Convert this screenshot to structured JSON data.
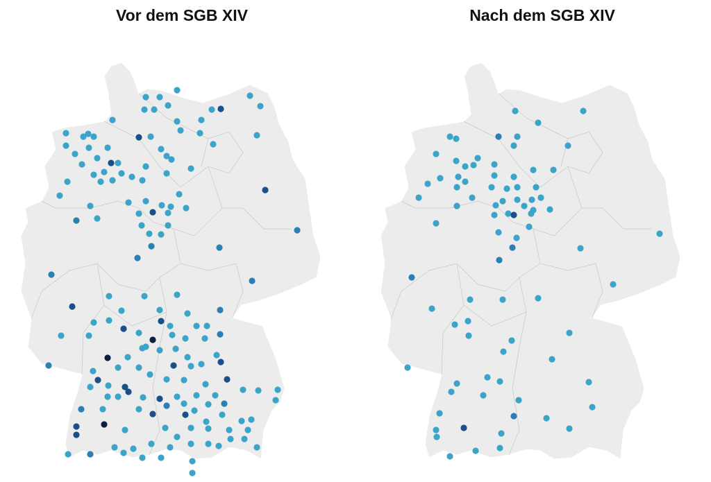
{
  "maps": [
    {
      "title": "Vor dem SGB XIV"
    },
    {
      "title": "Nach dem SGB XIV"
    }
  ]
}
